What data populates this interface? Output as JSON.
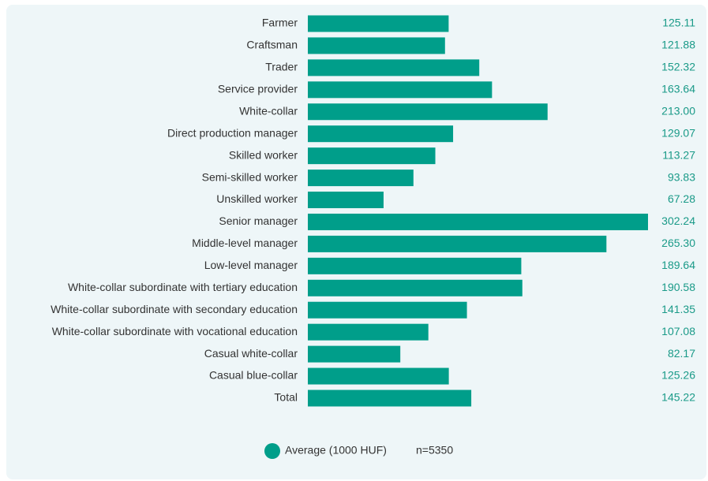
{
  "chart_data": {
    "type": "bar",
    "orientation": "horizontal",
    "categories": [
      "Farmer",
      "Craftsman",
      "Trader",
      "Service provider",
      "White-collar",
      "Direct production manager",
      "Skilled worker",
      "Semi-skilled worker",
      "Unskilled worker",
      "Senior manager",
      "Middle-level manager",
      "Low-level manager",
      "White-collar subordinate with tertiary education",
      "White-collar subordinate with secondary education",
      "White-collar subordinate with vocational education",
      "Casual white-collar",
      "Casual blue-collar",
      "Total"
    ],
    "series": [
      {
        "name": "Average (1000 HUF)",
        "color": "#009e8a",
        "values": [
          125.11,
          121.88,
          152.32,
          163.64,
          213,
          129.07,
          113.27,
          93.83,
          67.28,
          302.24,
          265.3,
          189.64,
          190.58,
          141.35,
          107.08,
          82.17,
          125.26,
          145.22
        ],
        "value_labels": [
          "125.11",
          "121.88",
          "152.32",
          "163.64",
          "213.00",
          "129.07",
          "113.27",
          "93.83",
          "67.28",
          "302.24",
          "265.30",
          "189.64",
          "190.58",
          "141.35",
          "107.08",
          "82.17",
          "125.26",
          "145.22"
        ]
      }
    ],
    "annotation": "n=5350"
  }
}
